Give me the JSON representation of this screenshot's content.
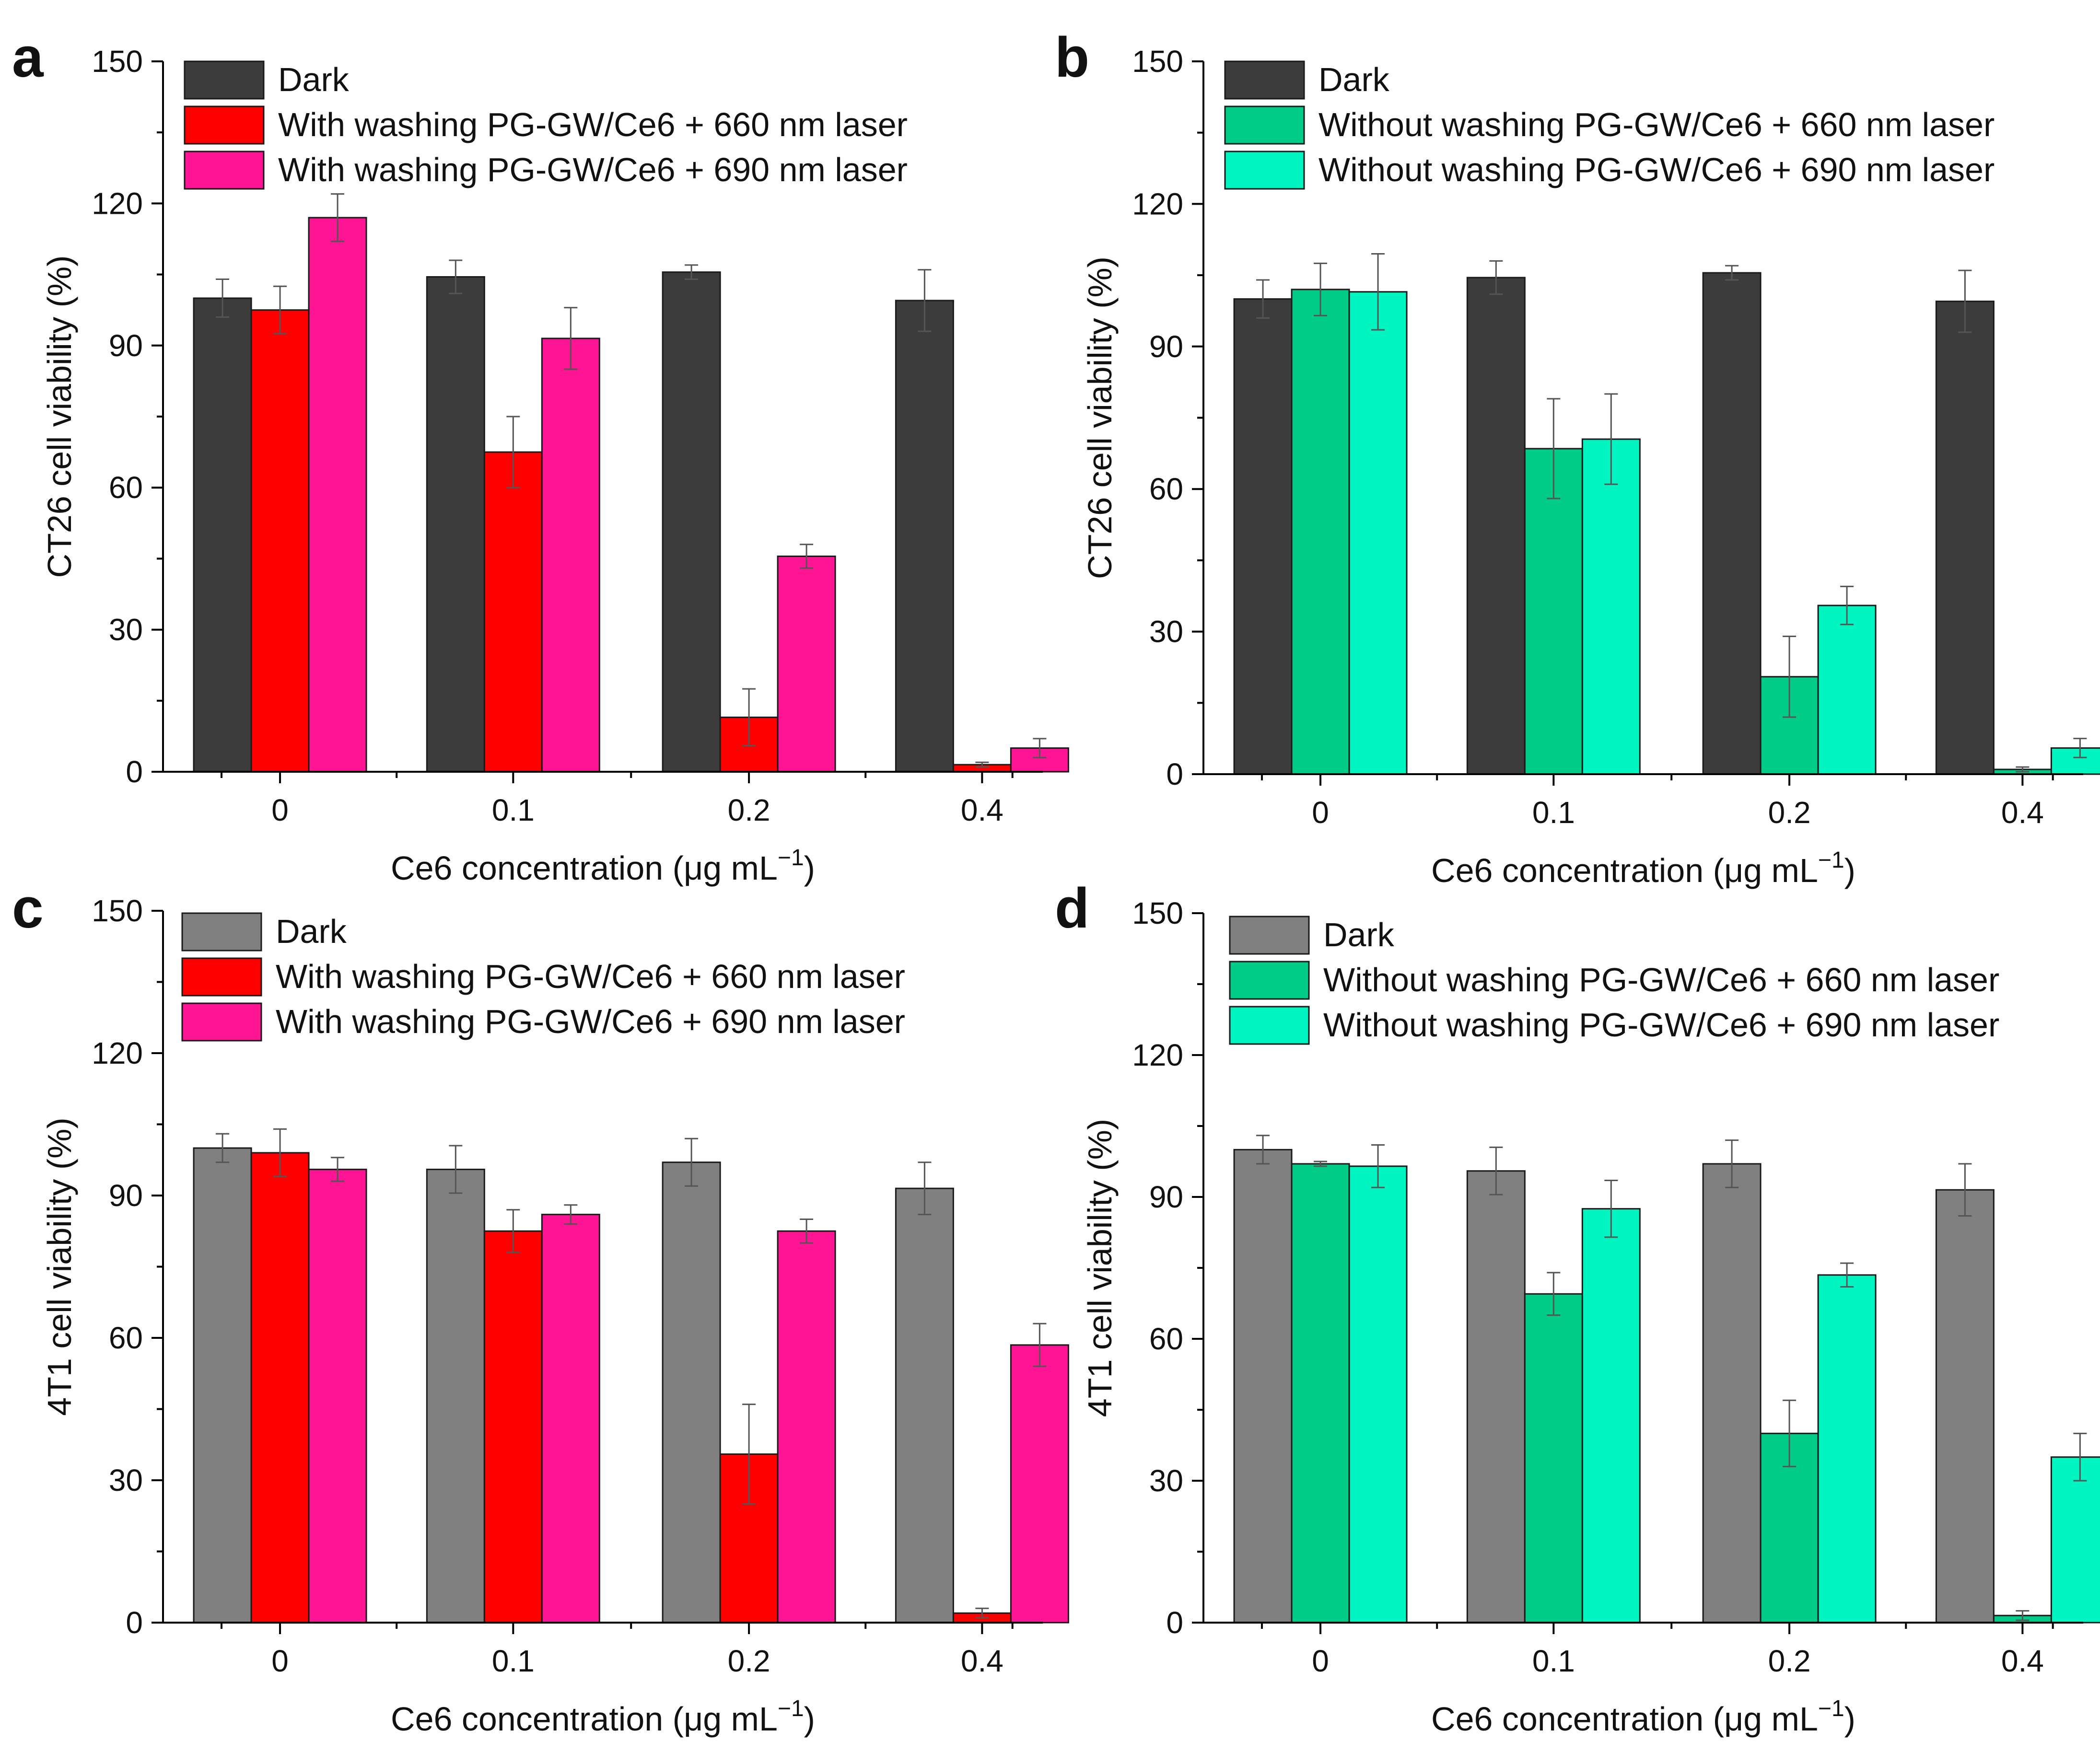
{
  "chart_data": [
    {
      "type": "bar",
      "panel_label": "a",
      "xlabel_main": "Ce6 concentration (μg mL",
      "xlabel_sup": "−1",
      "xlabel_end": ")",
      "ylabel": "CT26 cell viability (%)",
      "ylim": [
        0,
        150
      ],
      "y_ticks": [
        "0",
        "30",
        "60",
        "90",
        "120",
        "150"
      ],
      "categories": [
        "0",
        "0.1",
        "0.2",
        "0.4"
      ],
      "legend_position": "top-left",
      "series": [
        {
          "name": "Dark",
          "color": "#3c3c3c",
          "values": [
            100,
            104.5,
            105.5,
            99.5
          ],
          "errors": [
            4,
            3.5,
            1.5,
            6.5
          ]
        },
        {
          "name": "With washing PG-GW/Ce6 + 660 nm laser",
          "color": "#ff0000",
          "values": [
            97.5,
            67.5,
            11.5,
            1.5
          ],
          "errors": [
            5,
            7.5,
            6,
            0.5
          ]
        },
        {
          "name": "With washing PG-GW/Ce6 + 690 nm laser",
          "color": "#ff1493",
          "values": [
            117,
            91.5,
            45.5,
            5
          ],
          "errors": [
            5,
            6.5,
            2.5,
            2
          ]
        }
      ]
    },
    {
      "type": "bar",
      "panel_label": "b",
      "xlabel_main": "Ce6 concentration (μg mL",
      "xlabel_sup": "−1",
      "xlabel_end": ")",
      "ylabel": "CT26 cell viability (%)",
      "ylim": [
        0,
        150
      ],
      "y_ticks": [
        "0",
        "30",
        "60",
        "90",
        "120",
        "150"
      ],
      "categories": [
        "0",
        "0.1",
        "0.2",
        "0.4"
      ],
      "legend_position": "top-left",
      "series": [
        {
          "name": "Dark",
          "color": "#3c3c3c",
          "values": [
            100,
            104.5,
            105.5,
            99.5
          ],
          "errors": [
            4,
            3.5,
            1.5,
            6.5
          ]
        },
        {
          "name": "Without washing PG-GW/Ce6 + 660 nm laser",
          "color": "#00cc88",
          "values": [
            102,
            68.5,
            20.5,
            1
          ],
          "errors": [
            5.5,
            10.5,
            8.5,
            0.5
          ]
        },
        {
          "name": "Without washing PG-GW/Ce6 + 690 nm laser",
          "color": "#00f5c0",
          "values": [
            101.5,
            70.5,
            35.5,
            5.5
          ],
          "errors": [
            8,
            9.5,
            4,
            2
          ]
        }
      ]
    },
    {
      "type": "bar",
      "panel_label": "c",
      "xlabel_main": "Ce6 concentration (μg mL",
      "xlabel_sup": "−1",
      "xlabel_end": ")",
      "ylabel": "4T1 cell viability (%)",
      "ylim": [
        0,
        150
      ],
      "y_ticks": [
        "0",
        "30",
        "60",
        "90",
        "120",
        "150"
      ],
      "categories": [
        "0",
        "0.1",
        "0.2",
        "0.4"
      ],
      "legend_position": "top-left",
      "series": [
        {
          "name": "Dark",
          "color": "#808080",
          "values": [
            100,
            95.5,
            97,
            91.5
          ],
          "errors": [
            3,
            5,
            5,
            5.5
          ]
        },
        {
          "name": "With washing PG-GW/Ce6 + 660 nm laser",
          "color": "#ff0000",
          "values": [
            99,
            82.5,
            35.5,
            2
          ],
          "errors": [
            5,
            4.5,
            10.5,
            1
          ]
        },
        {
          "name": "With washing PG-GW/Ce6 + 690 nm laser",
          "color": "#ff1493",
          "values": [
            95.5,
            86,
            82.5,
            58.5
          ],
          "errors": [
            2.5,
            2,
            2.5,
            4.5
          ]
        }
      ]
    },
    {
      "type": "bar",
      "panel_label": "d",
      "xlabel_main": "Ce6 concentration (μg mL",
      "xlabel_sup": "−1",
      "xlabel_end": ")",
      "ylabel": "4T1 cell viability (%)",
      "ylim": [
        0,
        150
      ],
      "y_ticks": [
        "0",
        "30",
        "60",
        "90",
        "120",
        "150"
      ],
      "categories": [
        "0",
        "0.1",
        "0.2",
        "0.4"
      ],
      "legend_position": "top-left",
      "series": [
        {
          "name": "Dark",
          "color": "#808080",
          "values": [
            100,
            95.5,
            97,
            91.5
          ],
          "errors": [
            3,
            5,
            5,
            5.5
          ]
        },
        {
          "name": "Without washing PG-GW/Ce6 + 660 nm laser",
          "color": "#00cc88",
          "values": [
            97,
            69.5,
            40,
            1.5
          ],
          "errors": [
            0.5,
            4.5,
            7,
            1
          ]
        },
        {
          "name": "Without washing PG-GW/Ce6 + 690 nm laser",
          "color": "#00f5c0",
          "values": [
            96.5,
            87.5,
            73.5,
            35
          ],
          "errors": [
            4.5,
            6,
            2.5,
            5
          ]
        }
      ]
    }
  ]
}
